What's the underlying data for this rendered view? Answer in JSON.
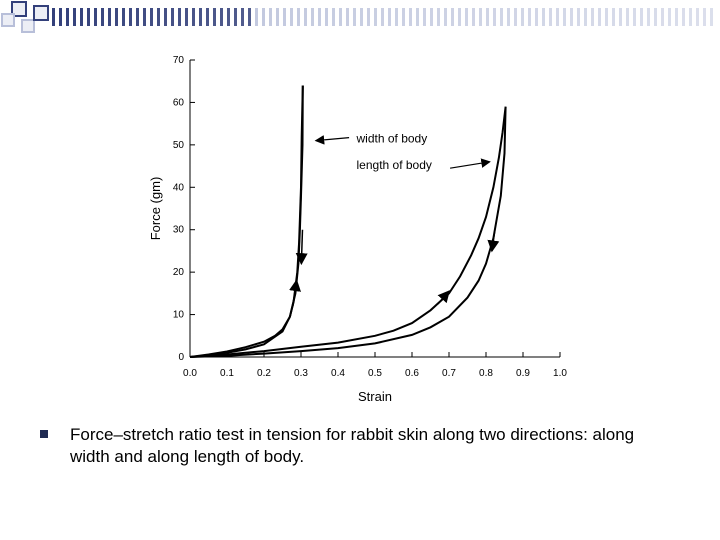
{
  "colors": {
    "deco_dark": "#33407a",
    "deco_light": "#b8bfd9",
    "deco_fill": "#eceef5",
    "bullet": "#1f2a52",
    "ink": "#000000"
  },
  "chart_data": {
    "type": "line",
    "title": "",
    "xlabel": "Strain",
    "ylabel": "Force (gm)",
    "xlim": [
      0.0,
      1.0
    ],
    "ylim": [
      0,
      70
    ],
    "xticks": [
      "0.0",
      "0.1",
      "0.2",
      "0.3",
      "0.4",
      "0.5",
      "0.6",
      "0.7",
      "0.8",
      "0.9",
      "1.0"
    ],
    "yticks": [
      "0",
      "10",
      "20",
      "30",
      "40",
      "50",
      "60",
      "70"
    ],
    "grid": false,
    "annotations": [
      {
        "text": "width of body",
        "arrow_to": [
          0.34,
          51
        ]
      },
      {
        "text": "length of body",
        "arrow_to": [
          0.81,
          46
        ]
      }
    ],
    "series": [
      {
        "x": [
          0.0,
          0.05,
          0.1,
          0.15,
          0.2,
          0.23,
          0.25,
          0.27,
          0.28,
          0.29,
          0.295,
          0.3,
          0.302,
          0.305
        ],
        "y": [
          0,
          0.6,
          1.3,
          2.3,
          3.6,
          5.0,
          6.5,
          9.5,
          13,
          20,
          27,
          40,
          52,
          64
        ]
      },
      {
        "x": [
          0.305,
          0.304,
          0.3,
          0.297,
          0.293,
          0.285,
          0.27,
          0.25,
          0.2,
          0.15,
          0.1,
          0.05,
          0.0
        ],
        "y": [
          64,
          50,
          38,
          30,
          22,
          15,
          9.5,
          6.0,
          3.0,
          1.8,
          1.0,
          0.4,
          0
        ]
      },
      {
        "x": [
          0.0,
          0.1,
          0.2,
          0.3,
          0.4,
          0.5,
          0.55,
          0.6,
          0.65,
          0.7,
          0.73,
          0.76,
          0.78,
          0.8,
          0.82,
          0.835,
          0.845,
          0.853
        ],
        "y": [
          0,
          0.6,
          1.4,
          2.4,
          3.4,
          5.0,
          6.2,
          8.0,
          11,
          15,
          19,
          24,
          28,
          33,
          40,
          47,
          53,
          59
        ]
      },
      {
        "x": [
          0.853,
          0.85,
          0.84,
          0.82,
          0.8,
          0.78,
          0.75,
          0.7,
          0.65,
          0.6,
          0.5,
          0.4,
          0.3,
          0.2,
          0.1,
          0.0
        ],
        "y": [
          59,
          48,
          38,
          28,
          22,
          18,
          14,
          9.5,
          7.0,
          5.2,
          3.2,
          2.1,
          1.4,
          0.8,
          0.3,
          0
        ]
      }
    ]
  },
  "caption": {
    "line1": "Force–stretch ratio test in tension for rabbit skin along two directions: along",
    "line2": "width and along length of body."
  }
}
